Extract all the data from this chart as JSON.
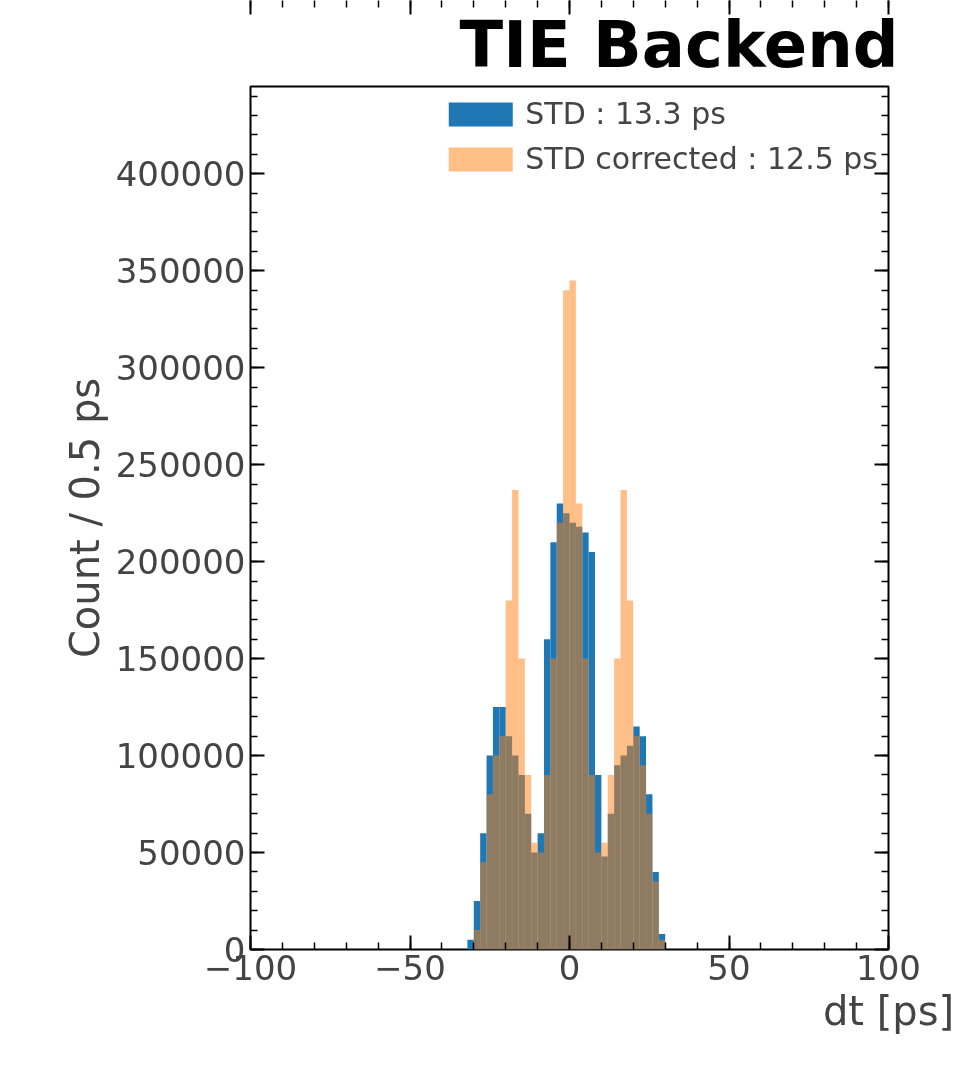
{
  "chart_data": {
    "type": "histogram",
    "title": "TIE Backend",
    "xlabel": "dt [ps]",
    "ylabel": "Count / 0.5 ps",
    "bins": [
      -32,
      -30,
      -28,
      -26,
      -24,
      -22,
      -20,
      -18,
      -16,
      -14,
      -12,
      -10,
      -8,
      -6,
      -4,
      -2,
      0,
      2,
      4,
      6,
      8,
      10,
      12,
      14,
      16,
      18,
      20,
      22,
      24,
      26,
      28,
      30
    ],
    "series": [
      {
        "name": "STD : 13.3 ps",
        "color": "#1f77b4",
        "values": [
          5000,
          25000,
          60000,
          100000,
          125000,
          125000,
          110000,
          100000,
          90000,
          70000,
          50000,
          60000,
          160000,
          210000,
          230000,
          225000,
          220000,
          218000,
          215000,
          205000,
          90000,
          48000,
          70000,
          95000,
          100000,
          105000,
          115000,
          110000,
          80000,
          40000,
          8000
        ]
      },
      {
        "name": "STD corrected : 12.5 ps",
        "color": "#ff7f0e",
        "values": [
          0,
          10000,
          45000,
          80000,
          100000,
          110000,
          180000,
          237000,
          150000,
          90000,
          55000,
          50000,
          90000,
          150000,
          220000,
          340000,
          345000,
          230000,
          150000,
          90000,
          50000,
          55000,
          90000,
          150000,
          237000,
          180000,
          110000,
          95000,
          70000,
          35000,
          5000
        ]
      }
    ],
    "xlim": [
      -100,
      100
    ],
    "xticks": [
      -100,
      -50,
      0,
      50,
      100
    ],
    "ylim": [
      0,
      445000
    ],
    "yticks": [
      0,
      50000,
      100000,
      150000,
      200000,
      250000,
      300000,
      350000,
      400000
    ],
    "grid": false,
    "legend": "top right"
  }
}
